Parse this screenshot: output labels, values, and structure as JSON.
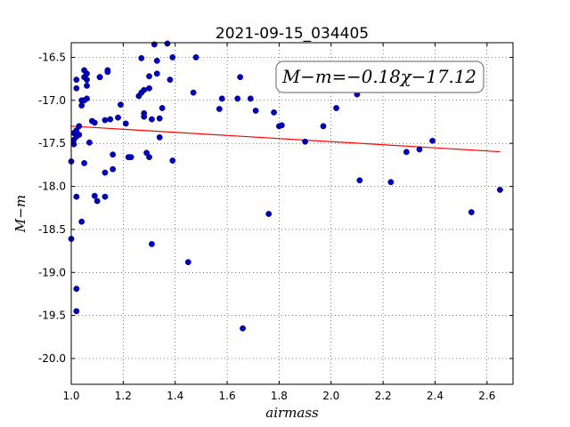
{
  "chart_data": {
    "type": "scatter",
    "title": "2021-09-15_034405",
    "xlabel": "airmass",
    "ylabel": "M−m",
    "xlim": [
      1.0,
      2.7
    ],
    "ylim": [
      -20.3,
      -16.33
    ],
    "xticks": [
      "1.0",
      "1.2",
      "1.4",
      "1.6",
      "1.8",
      "2.0",
      "2.2",
      "2.4",
      "2.6"
    ],
    "yticks": [
      "-16.5",
      "-17.0",
      "-17.5",
      "-18.0",
      "-18.5",
      "-19.0",
      "-19.5",
      "-20.0"
    ],
    "grid": true,
    "annotation": "M−m=−0.18χ−17.12",
    "fit": {
      "slope": -0.18,
      "intercept": -17.12,
      "x_range": [
        1.0,
        2.65
      ],
      "color": "#ff0000"
    },
    "marker_color": "#0000c0",
    "points": {
      "x": [
        1.0,
        1.0,
        1.01,
        1.01,
        1.01,
        1.02,
        1.02,
        1.02,
        1.02,
        1.02,
        1.02,
        1.02,
        1.03,
        1.03,
        1.04,
        1.04,
        1.04,
        1.05,
        1.05,
        1.05,
        1.05,
        1.06,
        1.06,
        1.06,
        1.06,
        1.07,
        1.08,
        1.09,
        1.09,
        1.1,
        1.11,
        1.11,
        1.13,
        1.13,
        1.13,
        1.14,
        1.14,
        1.15,
        1.16,
        1.16,
        1.18,
        1.19,
        1.21,
        1.22,
        1.23,
        1.26,
        1.27,
        1.27,
        1.28,
        1.28,
        1.28,
        1.29,
        1.3,
        1.3,
        1.3,
        1.31,
        1.31,
        1.32,
        1.33,
        1.33,
        1.34,
        1.34,
        1.35,
        1.37,
        1.38,
        1.39,
        1.39,
        1.45,
        1.47,
        1.48,
        1.57,
        1.58,
        1.64,
        1.65,
        1.66,
        1.69,
        1.71,
        1.76,
        1.78,
        1.8,
        1.81,
        1.9,
        1.97,
        2.02,
        2.1,
        2.11,
        2.23,
        2.29,
        2.34,
        2.39,
        2.54,
        2.65
      ],
      "y": [
        -17.71,
        -18.61,
        -17.38,
        -17.51,
        -17.46,
        -16.76,
        -16.86,
        -17.42,
        -17.35,
        -18.12,
        -19.19,
        -19.45,
        -17.3,
        -17.4,
        -17.0,
        -17.06,
        -18.41,
        -16.65,
        -16.73,
        -17.0,
        -17.73,
        -16.69,
        -16.76,
        -16.98,
        -16.83,
        -17.49,
        -17.24,
        -17.26,
        -18.11,
        -18.17,
        -16.73,
        -16.73,
        -17.23,
        -17.84,
        -18.12,
        -16.65,
        -16.67,
        -17.22,
        -17.63,
        -17.8,
        -17.2,
        -17.05,
        -17.27,
        -17.66,
        -17.66,
        -16.95,
        -16.91,
        -16.51,
        -17.15,
        -17.19,
        -16.88,
        -17.61,
        -16.86,
        -17.66,
        -16.72,
        -17.22,
        -18.67,
        -16.35,
        -16.54,
        -16.69,
        -17.21,
        -17.43,
        -17.09,
        -16.34,
        -16.76,
        -17.7,
        -16.5,
        -18.88,
        -16.91,
        -16.5,
        -17.1,
        -16.98,
        -16.98,
        -16.73,
        -19.65,
        -16.98,
        -17.12,
        -18.32,
        -17.14,
        -17.3,
        -17.29,
        -17.48,
        -17.3,
        -17.09,
        -16.93,
        -17.93,
        -17.95,
        -17.6,
        -17.57,
        -17.47,
        -18.3,
        -18.04
      ]
    }
  }
}
